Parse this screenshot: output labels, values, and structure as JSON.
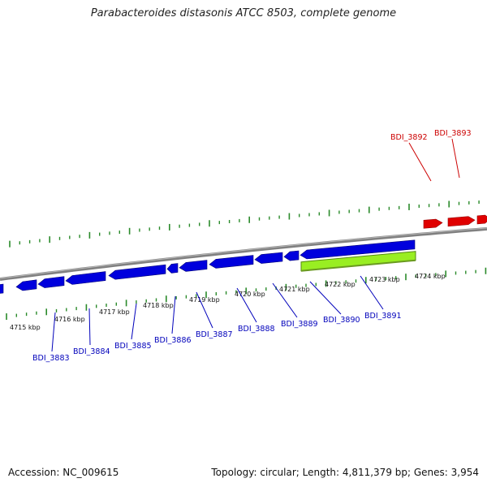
{
  "title": "Parabacteroides distasonis ATCC 8503, complete genome",
  "footer": {
    "accession": "Accession: NC_009615",
    "topology": "Topology: circular; Length: 4,811,379 bp; Genes: 3,954"
  },
  "colors": {
    "forward_gene": "#e00000",
    "reverse_gene": "#0000dd",
    "highlight_gene": "#99ee22",
    "backbone": "#808080",
    "tick": "#2a8a2a",
    "forward_label": "#cc0000",
    "reverse_label": "#0000bb"
  },
  "kbp_labels": [
    "4715 kbp",
    "4716 kbp",
    "4717 kbp",
    "4718 kbp",
    "4719 kbp",
    "4720 kbp",
    "4721 kbp",
    "4722 kbp",
    "4723 kbp",
    "4724 kbp"
  ],
  "forward_genes": [
    "BDI_3892",
    "BDI_3893"
  ],
  "reverse_genes": [
    "BDI_3883",
    "BDI_3884",
    "BDI_3885",
    "BDI_3886",
    "BDI_3887",
    "BDI_3888",
    "BDI_3889",
    "BDI_3890",
    "BDI_3891"
  ]
}
